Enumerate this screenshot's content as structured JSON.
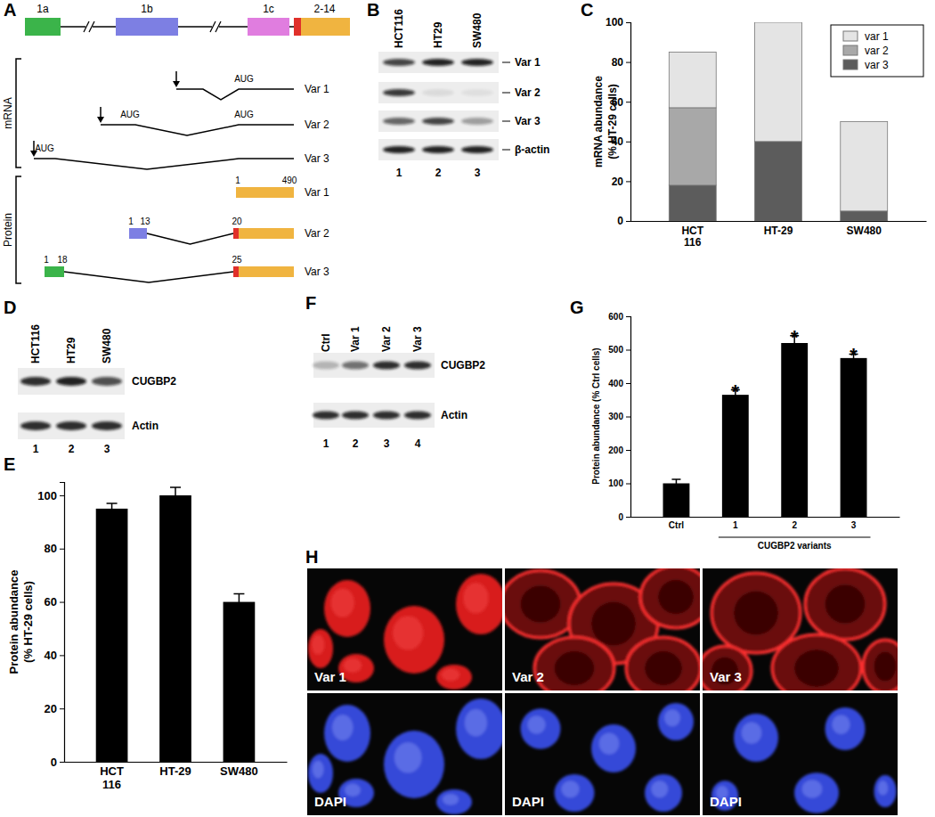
{
  "panel_labels": [
    "A",
    "B",
    "C",
    "D",
    "E",
    "F",
    "G",
    "H"
  ],
  "gene_diagram": {
    "exons": [
      "1a",
      "1b",
      "1c",
      "2-14"
    ],
    "mrna_label": "mRNA",
    "protein_label": "Protein",
    "variants": [
      {
        "name": "Var 1",
        "codons": [
          "AUG"
        ],
        "protein_numbers": [
          1,
          490
        ]
      },
      {
        "name": "Var 2",
        "codons": [
          "AUG",
          "AUG"
        ],
        "protein_numbers": [
          1,
          13,
          20
        ]
      },
      {
        "name": "Var 3",
        "codons": [
          "AUG"
        ],
        "protein_numbers": [
          1,
          18,
          25
        ]
      }
    ]
  },
  "blot_b": {
    "lanes": [
      "HCT116",
      "HT29",
      "SW480"
    ],
    "bands": [
      "Var 1",
      "Var 2",
      "Var 3",
      "β-actin"
    ],
    "lane_numbers": [
      1,
      2,
      3
    ]
  },
  "blot_d": {
    "lanes": [
      "HCT116",
      "HT29",
      "SW480"
    ],
    "bands": [
      "CUGBP2",
      "Actin"
    ],
    "lane_numbers": [
      1,
      2,
      3
    ]
  },
  "blot_f": {
    "lanes": [
      "Ctrl",
      "Var 1",
      "Var 2",
      "Var 3"
    ],
    "bands": [
      "CUGBP2",
      "Actin"
    ],
    "lane_numbers": [
      1,
      2,
      3,
      4
    ]
  },
  "micrographs": {
    "top": [
      "Var 1",
      "Var 2",
      "Var 3"
    ],
    "bottom": [
      "DAPI",
      "DAPI",
      "DAPI"
    ]
  },
  "chart_data": [
    {
      "type": "bar",
      "stacked": true,
      "ylabel": [
        "mRNA abundance",
        "(% HT-29 cells)"
      ],
      "categories": [
        "HCT 116",
        "HT-29",
        "SW480"
      ],
      "series": [
        {
          "name": "var 1",
          "color": "#e4e4e4",
          "values": [
            28,
            60,
            45
          ]
        },
        {
          "name": "var 2",
          "color": "#a8a8a8",
          "values": [
            39,
            0,
            0
          ]
        },
        {
          "name": "var 3",
          "color": "#5c5c5c",
          "values": [
            18,
            40,
            5
          ]
        }
      ],
      "ylim": [
        0,
        100
      ],
      "yticks": [
        0,
        20,
        40,
        60,
        80,
        100
      ],
      "legend": "upper right"
    },
    {
      "type": "bar",
      "ylabel": [
        "Protein abundance",
        "(% HT-29 cells)"
      ],
      "categories": [
        "HCT 116",
        "HT-29",
        "SW480"
      ],
      "values": [
        95,
        100,
        60
      ],
      "errors": [
        2,
        3,
        3
      ],
      "color": "#000000",
      "ylim": [
        0,
        105
      ],
      "yticks": [
        0,
        20,
        40,
        60,
        80,
        100
      ]
    },
    {
      "type": "bar",
      "ylabel": "Protein abundance (% Ctrl cells)",
      "xlabel": "CUGBP2 variants",
      "categories": [
        "Ctrl",
        "1",
        "2",
        "3"
      ],
      "values": [
        100,
        365,
        520,
        475
      ],
      "errors": [
        12,
        15,
        22,
        12
      ],
      "annotations": [
        null,
        "*",
        "*",
        "*"
      ],
      "color": "#000000",
      "ylim": [
        0,
        600
      ],
      "yticks": [
        0,
        100,
        200,
        300,
        400,
        500,
        600
      ]
    }
  ]
}
